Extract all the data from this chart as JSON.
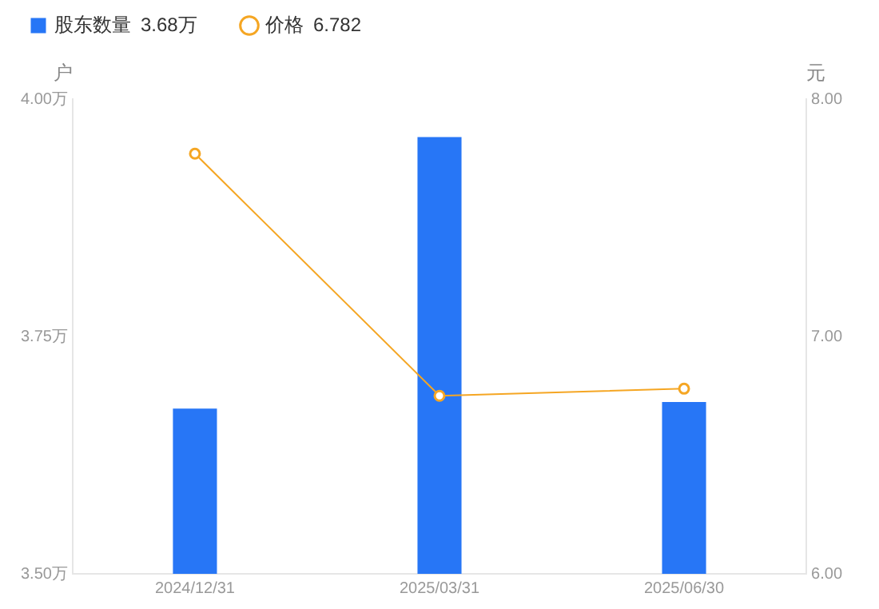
{
  "chart_data": {
    "type": "bar",
    "categories": [
      "2024/12/31",
      "2025/03/31",
      "2025/06/30"
    ],
    "series": [
      {
        "name": "股东数量",
        "color": "#2776f6",
        "values": [
          3.674,
          3.96,
          3.681
        ]
      },
      {
        "name": "价格",
        "type": "line",
        "axis": "y2",
        "color": "#f5a623",
        "values": [
          7.77,
          6.75,
          6.78
        ]
      }
    ],
    "annotations": [
      "3.68万",
      "6.782"
    ],
    "ylabel": "户",
    "y2label": "元",
    "ylim": [
      3.5,
      4.0
    ],
    "yticks": [
      {
        "value": 3.5,
        "label": "3.50万"
      },
      {
        "value": 3.75,
        "label": "3.75万"
      },
      {
        "value": 4.0,
        "label": "4.00万"
      }
    ],
    "y2lim": [
      6,
      8
    ],
    "y2ticks": [
      {
        "value": 6,
        "label": "6.00"
      },
      {
        "value": 7,
        "label": "7.00"
      },
      {
        "value": 8,
        "label": "8.00"
      }
    ],
    "grid": false,
    "legend": "top left",
    "marker": "circle",
    "line_style": "solid"
  }
}
